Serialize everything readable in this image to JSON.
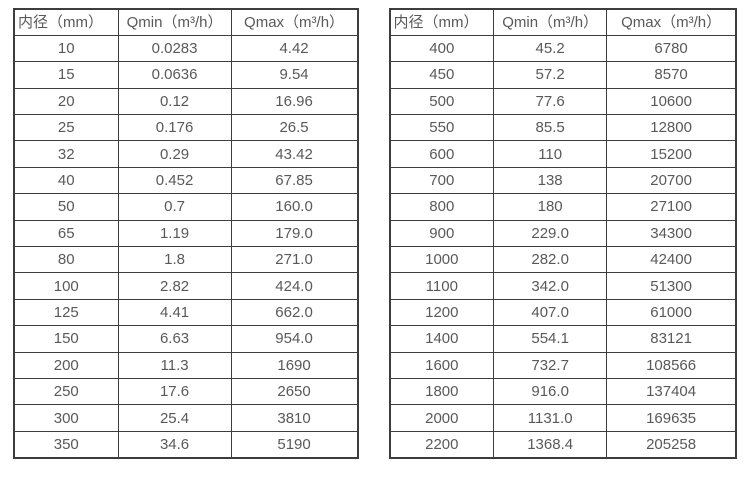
{
  "page": {
    "background": "#ffffff",
    "text_color": "#595959",
    "border_color": "#3d3d3d"
  },
  "tables": [
    {
      "name": "flow-table-small-diameters",
      "columns": [
        "内径（mm）",
        "Qmin（m³/h）",
        "Qmax（m³/h）"
      ],
      "rows": [
        [
          "10",
          "0.0283",
          "4.42"
        ],
        [
          "15",
          "0.0636",
          "9.54"
        ],
        [
          "20",
          "0.12",
          "16.96"
        ],
        [
          "25",
          "0.176",
          "26.5"
        ],
        [
          "32",
          "0.29",
          "43.42"
        ],
        [
          "40",
          "0.452",
          "67.85"
        ],
        [
          "50",
          "0.7",
          "160.0"
        ],
        [
          "65",
          "1.19",
          "179.0"
        ],
        [
          "80",
          "1.8",
          "271.0"
        ],
        [
          "100",
          "2.82",
          "424.0"
        ],
        [
          "125",
          "4.41",
          "662.0"
        ],
        [
          "150",
          "6.63",
          "954.0"
        ],
        [
          "200",
          "11.3",
          "1690"
        ],
        [
          "250",
          "17.6",
          "2650"
        ],
        [
          "300",
          "25.4",
          "3810"
        ],
        [
          "350",
          "34.6",
          "5190"
        ]
      ]
    },
    {
      "name": "flow-table-large-diameters",
      "columns": [
        "内径（mm）",
        "Qmin（m³/h）",
        "Qmax（m³/h）"
      ],
      "rows": [
        [
          "400",
          "45.2",
          "6780"
        ],
        [
          "450",
          "57.2",
          "8570"
        ],
        [
          "500",
          "77.6",
          "10600"
        ],
        [
          "550",
          "85.5",
          "12800"
        ],
        [
          "600",
          "110",
          "15200"
        ],
        [
          "700",
          "138",
          "20700"
        ],
        [
          "800",
          "180",
          "27100"
        ],
        [
          "900",
          "229.0",
          "34300"
        ],
        [
          "1000",
          "282.0",
          "42400"
        ],
        [
          "1100",
          "342.0",
          "51300"
        ],
        [
          "1200",
          "407.0",
          "61000"
        ],
        [
          "1400",
          "554.1",
          "83121"
        ],
        [
          "1600",
          "732.7",
          "108566"
        ],
        [
          "1800",
          "916.0",
          "137404"
        ],
        [
          "2000",
          "1131.0",
          "169635"
        ],
        [
          "2200",
          "1368.4",
          "205258"
        ]
      ]
    }
  ]
}
